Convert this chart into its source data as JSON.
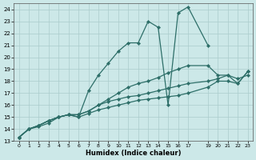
{
  "title": "",
  "xlabel": "Humidex (Indice chaleur)",
  "background_color": "#cce8e8",
  "grid_color": "#aacccc",
  "line_color": "#2d6e68",
  "xlim": [
    -0.5,
    23.5
  ],
  "ylim": [
    13,
    24.5
  ],
  "yticks": [
    13,
    14,
    15,
    16,
    17,
    18,
    19,
    20,
    21,
    22,
    23,
    24
  ],
  "series": [
    {
      "x": [
        0,
        1,
        2,
        3,
        4,
        5,
        6,
        7,
        8,
        9,
        10,
        11,
        12,
        13,
        14,
        15,
        16,
        17,
        19
      ],
      "y": [
        13.3,
        14.0,
        14.3,
        14.7,
        15.0,
        15.2,
        15.0,
        17.2,
        18.5,
        19.5,
        20.5,
        21.2,
        21.2,
        23.0,
        22.5,
        16.0,
        23.7,
        24.2,
        21.0
      ]
    },
    {
      "x": [
        0,
        1,
        2,
        3,
        4,
        5,
        6,
        7,
        8,
        9,
        10,
        11,
        12,
        13,
        14,
        15,
        16,
        17,
        19,
        20,
        21,
        22,
        23
      ],
      "y": [
        13.3,
        14.0,
        14.3,
        14.7,
        15.0,
        15.2,
        15.2,
        15.5,
        16.0,
        16.5,
        17.0,
        17.5,
        17.8,
        18.0,
        18.3,
        18.7,
        19.0,
        19.3,
        19.3,
        18.5,
        18.5,
        17.8,
        18.8
      ]
    },
    {
      "x": [
        0,
        1,
        2,
        3,
        4,
        5,
        6,
        7,
        8,
        9,
        10,
        11,
        12,
        13,
        14,
        15,
        16,
        17,
        19,
        20,
        21,
        22,
        23
      ],
      "y": [
        13.3,
        14.0,
        14.3,
        14.7,
        15.0,
        15.2,
        15.2,
        15.5,
        16.0,
        16.3,
        16.5,
        16.7,
        16.8,
        17.0,
        17.2,
        17.4,
        17.6,
        17.8,
        18.0,
        18.2,
        18.5,
        18.2,
        18.5
      ]
    },
    {
      "x": [
        0,
        1,
        2,
        3,
        4,
        5,
        6,
        7,
        8,
        9,
        10,
        11,
        12,
        13,
        14,
        15,
        16,
        17,
        19,
        20,
        21,
        22,
        23
      ],
      "y": [
        13.3,
        14.0,
        14.2,
        14.5,
        15.0,
        15.2,
        15.0,
        15.3,
        15.6,
        15.8,
        16.0,
        16.2,
        16.4,
        16.5,
        16.6,
        16.7,
        16.8,
        17.0,
        17.5,
        18.0,
        18.0,
        17.8,
        18.8
      ]
    }
  ]
}
